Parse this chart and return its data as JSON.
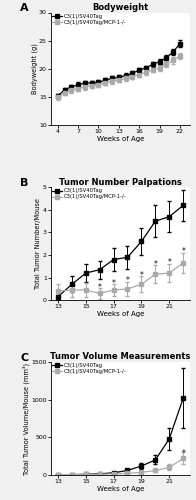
{
  "panel_A": {
    "title": "Bodyweight",
    "xlabel": "Weeks of Age",
    "ylabel": "Bodyweight (g)",
    "xlim": [
      3,
      23.5
    ],
    "ylim": [
      10,
      30
    ],
    "xticks": [
      4,
      7,
      10,
      13,
      16,
      19,
      22
    ],
    "yticks": [
      10,
      15,
      20,
      25,
      30
    ],
    "weeks": [
      4,
      5,
      6,
      7,
      8,
      9,
      10,
      11,
      12,
      13,
      14,
      15,
      16,
      17,
      18,
      19,
      20,
      21,
      22
    ],
    "black_mean": [
      15.2,
      16.3,
      16.8,
      17.2,
      17.5,
      17.5,
      17.6,
      18.0,
      18.3,
      18.5,
      18.8,
      19.2,
      19.8,
      20.2,
      20.8,
      21.3,
      22.0,
      23.0,
      24.5
    ],
    "black_sem": [
      0.4,
      0.4,
      0.4,
      0.4,
      0.4,
      0.4,
      0.4,
      0.4,
      0.4,
      0.4,
      0.4,
      0.4,
      0.4,
      0.4,
      0.5,
      0.5,
      0.5,
      0.6,
      0.7
    ],
    "gray_mean": [
      15.0,
      15.8,
      16.2,
      16.5,
      16.8,
      17.0,
      17.2,
      17.5,
      17.8,
      18.0,
      18.3,
      18.6,
      19.0,
      19.4,
      19.8,
      20.2,
      20.8,
      21.5,
      22.3
    ],
    "gray_sem": [
      0.5,
      0.5,
      0.5,
      0.5,
      0.5,
      0.4,
      0.4,
      0.4,
      0.4,
      0.4,
      0.4,
      0.4,
      0.4,
      0.4,
      0.4,
      0.5,
      0.5,
      0.6,
      0.6
    ],
    "legend": [
      "C3(1)/SV40Tag",
      "C3(1)/SV40Tag/MCP-1-/-"
    ]
  },
  "panel_B": {
    "title": "Tumor Number Palpations",
    "xlabel": "Weeks of Age",
    "ylabel": "Total Tumor Number/Mouse",
    "xlim": [
      12.5,
      22.5
    ],
    "ylim": [
      0,
      5
    ],
    "xticks": [
      13,
      15,
      17,
      19,
      21
    ],
    "yticks": [
      0,
      1,
      2,
      3,
      4,
      5
    ],
    "weeks": [
      13,
      14,
      15,
      16,
      17,
      18,
      19,
      20,
      21,
      22
    ],
    "black_mean": [
      0.15,
      0.7,
      1.2,
      1.35,
      1.8,
      1.9,
      2.6,
      3.5,
      3.7,
      4.2
    ],
    "black_sem": [
      0.15,
      0.35,
      0.4,
      0.4,
      0.5,
      0.5,
      0.6,
      0.7,
      0.7,
      0.7
    ],
    "gray_mean": [
      0.4,
      0.45,
      0.45,
      0.3,
      0.45,
      0.5,
      0.7,
      1.15,
      1.2,
      1.65
    ],
    "gray_sem": [
      0.3,
      0.3,
      0.3,
      0.25,
      0.25,
      0.3,
      0.35,
      0.4,
      0.4,
      0.45
    ],
    "star_positions": [
      [
        16,
        0.58
      ],
      [
        17,
        0.75
      ],
      [
        18,
        0.85
      ],
      [
        19,
        1.1
      ],
      [
        20,
        1.6
      ],
      [
        21,
        1.65
      ],
      [
        22,
        2.15
      ]
    ],
    "legend": [
      "C3(1)/SV40Tag",
      "C3(1)/SV40Tag/MCP-1-/-"
    ]
  },
  "panel_C": {
    "title": "Tumor Volume Measurements",
    "xlabel": "Weeks of Age",
    "ylabel": "Total Tumor Volume/Mouse (mm³)",
    "xlim": [
      12.5,
      22.5
    ],
    "ylim": [
      0,
      1500
    ],
    "xticks": [
      13,
      15,
      17,
      19,
      21
    ],
    "yticks": [
      0,
      500,
      1000,
      1500
    ],
    "weeks": [
      13,
      14,
      15,
      16,
      17,
      18,
      19,
      20,
      21,
      22
    ],
    "black_mean": [
      2,
      4,
      10,
      15,
      30,
      60,
      120,
      200,
      480,
      1020
    ],
    "black_sem": [
      2,
      3,
      5,
      8,
      12,
      20,
      40,
      60,
      150,
      400
    ],
    "gray_mean": [
      5,
      5,
      8,
      10,
      15,
      20,
      35,
      60,
      100,
      220
    ],
    "gray_sem": [
      4,
      4,
      5,
      6,
      8,
      10,
      15,
      25,
      40,
      80
    ],
    "star_positions": [
      [
        22,
        280
      ]
    ],
    "legend": [
      "C3(1)/SV40Tag",
      "C3(1)/SV40Tag/MCP-1-/-"
    ]
  },
  "black_color": "#000000",
  "gray_color": "#aaaaaa",
  "bg_color": "#ffffff",
  "face_color": "#f0f0f0"
}
